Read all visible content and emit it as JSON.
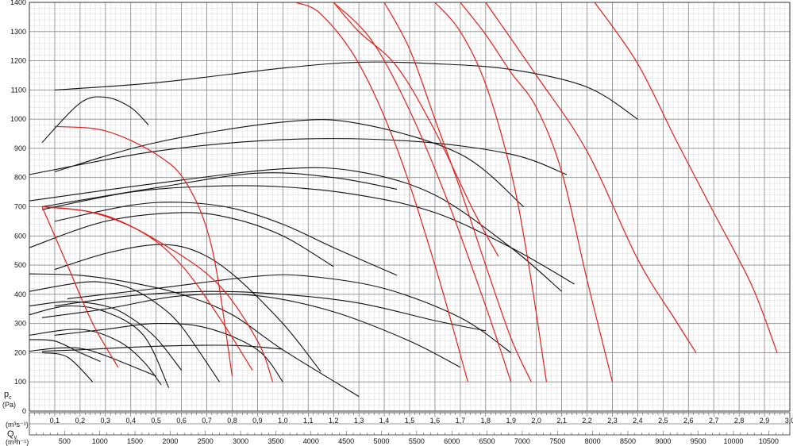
{
  "chart_data": {
    "type": "line",
    "title": "",
    "ylabel": "p",
    "ylabel_sub": "c",
    "ylabel_unit": "(Pa)",
    "xlabel": "Q",
    "xlabel_sub": "v",
    "x_unit_primary": "(m³s⁻¹)",
    "x_unit_secondary": "(m³h⁻¹)",
    "grid": true,
    "xlim": [
      0,
      3.0
    ],
    "ylim": [
      0,
      1400
    ],
    "y_ticks": [
      0,
      100,
      200,
      300,
      400,
      500,
      600,
      700,
      800,
      900,
      1000,
      1100,
      1200,
      1300,
      1400
    ],
    "x_ticks_m3s": [
      "0,1",
      "0,2",
      "0,3",
      "0,4",
      "0,5",
      "0,6",
      "0,7",
      "0,8",
      "0,9",
      "1,0",
      "1,1",
      "1,2",
      "1,3",
      "1,4",
      "1,5",
      "1,6",
      "1,7",
      "1,8",
      "1,9",
      "2,0",
      "2,1",
      "2,2",
      "2,3",
      "2,4",
      "2,5",
      "2,6",
      "2,7",
      "2,8",
      "2,9",
      "3,0"
    ],
    "x_ticks_m3h": [
      500,
      1000,
      1500,
      2000,
      2500,
      3000,
      3500,
      4000,
      4500,
      5000,
      5500,
      6000,
      6500,
      7000,
      7500,
      8000,
      8500,
      9000,
      9500,
      10000,
      10500
    ],
    "colors": {
      "fan_curve": "#111111",
      "system_curve": "#e0201c",
      "grid_major": "#8a8a8a",
      "grid_minor": "#c8c8c8"
    },
    "fan_curves": [
      {
        "x": [
          0.1,
          0.5,
          1.0,
          1.3,
          1.6,
          1.9,
          2.2,
          2.4
        ],
        "y": [
          1100,
          1125,
          1175,
          1195,
          1190,
          1170,
          1110,
          1000
        ]
      },
      {
        "x": [
          0.05,
          0.2,
          0.3,
          0.4,
          0.47
        ],
        "y": [
          920,
          1055,
          1075,
          1040,
          980
        ]
      },
      {
        "x": [
          0.1,
          0.5,
          1.0,
          1.3,
          1.7,
          1.95
        ],
        "y": [
          820,
          920,
          990,
          985,
          880,
          700
        ]
      },
      {
        "x": [
          0.0,
          0.5,
          1.0,
          1.5,
          1.9,
          2.12
        ],
        "y": [
          810,
          890,
          930,
          925,
          880,
          810
        ]
      },
      {
        "x": [
          0.0,
          0.5,
          1.0,
          1.3,
          1.6,
          1.9,
          2.1
        ],
        "y": [
          720,
          780,
          830,
          820,
          740,
          560,
          410
        ]
      },
      {
        "x": [
          0.05,
          0.5,
          0.9,
          1.2,
          1.45
        ],
        "y": [
          700,
          765,
          815,
          800,
          760
        ]
      },
      {
        "x": [
          0.05,
          0.4,
          0.7,
          1.0,
          1.3,
          1.6,
          1.9,
          2.15
        ],
        "y": [
          690,
          750,
          770,
          768,
          740,
          680,
          560,
          435
        ]
      },
      {
        "x": [
          0.1,
          0.4,
          0.6,
          0.8,
          1.0,
          1.2,
          1.45
        ],
        "y": [
          650,
          705,
          715,
          695,
          640,
          560,
          465
        ]
      },
      {
        "x": [
          0.0,
          0.3,
          0.6,
          0.8,
          1.0,
          1.2
        ],
        "y": [
          560,
          650,
          680,
          660,
          600,
          495
        ]
      },
      {
        "x": [
          0.1,
          0.3,
          0.5,
          0.65,
          0.8,
          1.0,
          1.15
        ],
        "y": [
          485,
          540,
          570,
          550,
          470,
          300,
          135
        ]
      },
      {
        "x": [
          0.15,
          0.5,
          0.9,
          1.1,
          1.4,
          1.7,
          1.9
        ],
        "y": [
          385,
          420,
          462,
          462,
          420,
          320,
          200
        ]
      },
      {
        "x": [
          0.1,
          0.4,
          0.7,
          1.0,
          1.3,
          1.6,
          1.8
        ],
        "y": [
          360,
          395,
          410,
          400,
          370,
          310,
          275
        ]
      },
      {
        "x": [
          0.0,
          0.2,
          0.4,
          0.6,
          0.8,
          1.0,
          1.3
        ],
        "y": [
          470,
          465,
          440,
          400,
          330,
          210,
          50
        ]
      },
      {
        "x": [
          0.0,
          0.2,
          0.3,
          0.4,
          0.5,
          0.6,
          0.75
        ],
        "y": [
          410,
          440,
          440,
          420,
          370,
          290,
          100
        ]
      },
      {
        "x": [
          0.05,
          0.3,
          0.6,
          0.9,
          1.2,
          1.5,
          1.7
        ],
        "y": [
          320,
          350,
          395,
          395,
          340,
          240,
          150
        ]
      },
      {
        "x": [
          0.0,
          0.15,
          0.3,
          0.4,
          0.5,
          0.6
        ],
        "y": [
          360,
          375,
          360,
          320,
          250,
          140
        ]
      },
      {
        "x": [
          0.1,
          0.3,
          0.5,
          0.7,
          0.9,
          1.0
        ],
        "y": [
          260,
          280,
          300,
          285,
          210,
          100
        ]
      },
      {
        "x": [
          0.0,
          0.15,
          0.3,
          0.45,
          0.55
        ],
        "y": [
          330,
          360,
          340,
          260,
          80
        ]
      },
      {
        "x": [
          0.0,
          0.2,
          0.35,
          0.45,
          0.52
        ],
        "y": [
          260,
          280,
          240,
          170,
          90
        ]
      },
      {
        "x": [
          0.0,
          0.1,
          0.2,
          0.28
        ],
        "y": [
          245,
          240,
          200,
          170
        ]
      },
      {
        "x": [
          0.05,
          0.2,
          0.5,
          0.8,
          1.0
        ],
        "y": [
          205,
          210,
          222,
          225,
          212
        ]
      },
      {
        "x": [
          0.0,
          0.1,
          0.2,
          0.3,
          0.5
        ],
        "y": [
          205,
          215,
          215,
          190,
          120
        ]
      },
      {
        "x": [
          0.05,
          0.15,
          0.25
        ],
        "y": [
          200,
          185,
          100
        ]
      }
    ],
    "system_curves": [
      {
        "x": [
          0.1,
          0.3,
          0.5,
          0.62,
          0.72,
          0.8
        ],
        "y": [
          975,
          960,
          880,
          780,
          560,
          120
        ]
      },
      {
        "x": [
          0.05,
          0.25,
          0.45,
          0.6,
          0.75,
          0.88
        ],
        "y": [
          700,
          680,
          610,
          500,
          320,
          140
        ]
      },
      {
        "x": [
          0.05,
          0.3,
          0.55,
          0.75,
          0.9,
          0.96
        ],
        "y": [
          700,
          670,
          560,
          430,
          240,
          100
        ]
      },
      {
        "x": [
          0.05,
          0.15,
          0.25,
          0.35
        ],
        "y": [
          700,
          500,
          300,
          150
        ]
      },
      {
        "x": [
          1.05,
          1.15,
          1.3,
          1.45,
          1.6,
          1.73
        ],
        "y": [
          1400,
          1360,
          1190,
          900,
          500,
          100
        ]
      },
      {
        "x": [
          1.2,
          1.35,
          1.5,
          1.65,
          1.8,
          1.9
        ],
        "y": [
          1400,
          1270,
          1030,
          720,
          360,
          100
        ]
      },
      {
        "x": [
          1.2,
          1.3,
          1.45,
          1.6,
          1.75,
          1.85
        ],
        "y": [
          1400,
          1300,
          1180,
          960,
          690,
          530
        ]
      },
      {
        "x": [
          1.4,
          1.5,
          1.6,
          1.7,
          1.8,
          1.9,
          1.98
        ],
        "y": [
          1400,
          1240,
          1000,
          760,
          500,
          250,
          100
        ]
      },
      {
        "x": [
          1.6,
          1.7,
          1.8,
          1.9,
          1.97,
          2.04
        ],
        "y": [
          1400,
          1300,
          1120,
          820,
          500,
          100
        ]
      },
      {
        "x": [
          1.7,
          1.8,
          1.9,
          2.0,
          2.1,
          2.2,
          2.3
        ],
        "y": [
          1400,
          1290,
          1160,
          1040,
          820,
          450,
          100
        ]
      },
      {
        "x": [
          1.8,
          2.0,
          2.2,
          2.4,
          2.55,
          2.63
        ],
        "y": [
          1400,
          1150,
          890,
          520,
          310,
          200
        ]
      },
      {
        "x": [
          2.23,
          2.4,
          2.55,
          2.7,
          2.85,
          2.95
        ],
        "y": [
          1400,
          1190,
          930,
          680,
          430,
          200
        ]
      }
    ]
  }
}
